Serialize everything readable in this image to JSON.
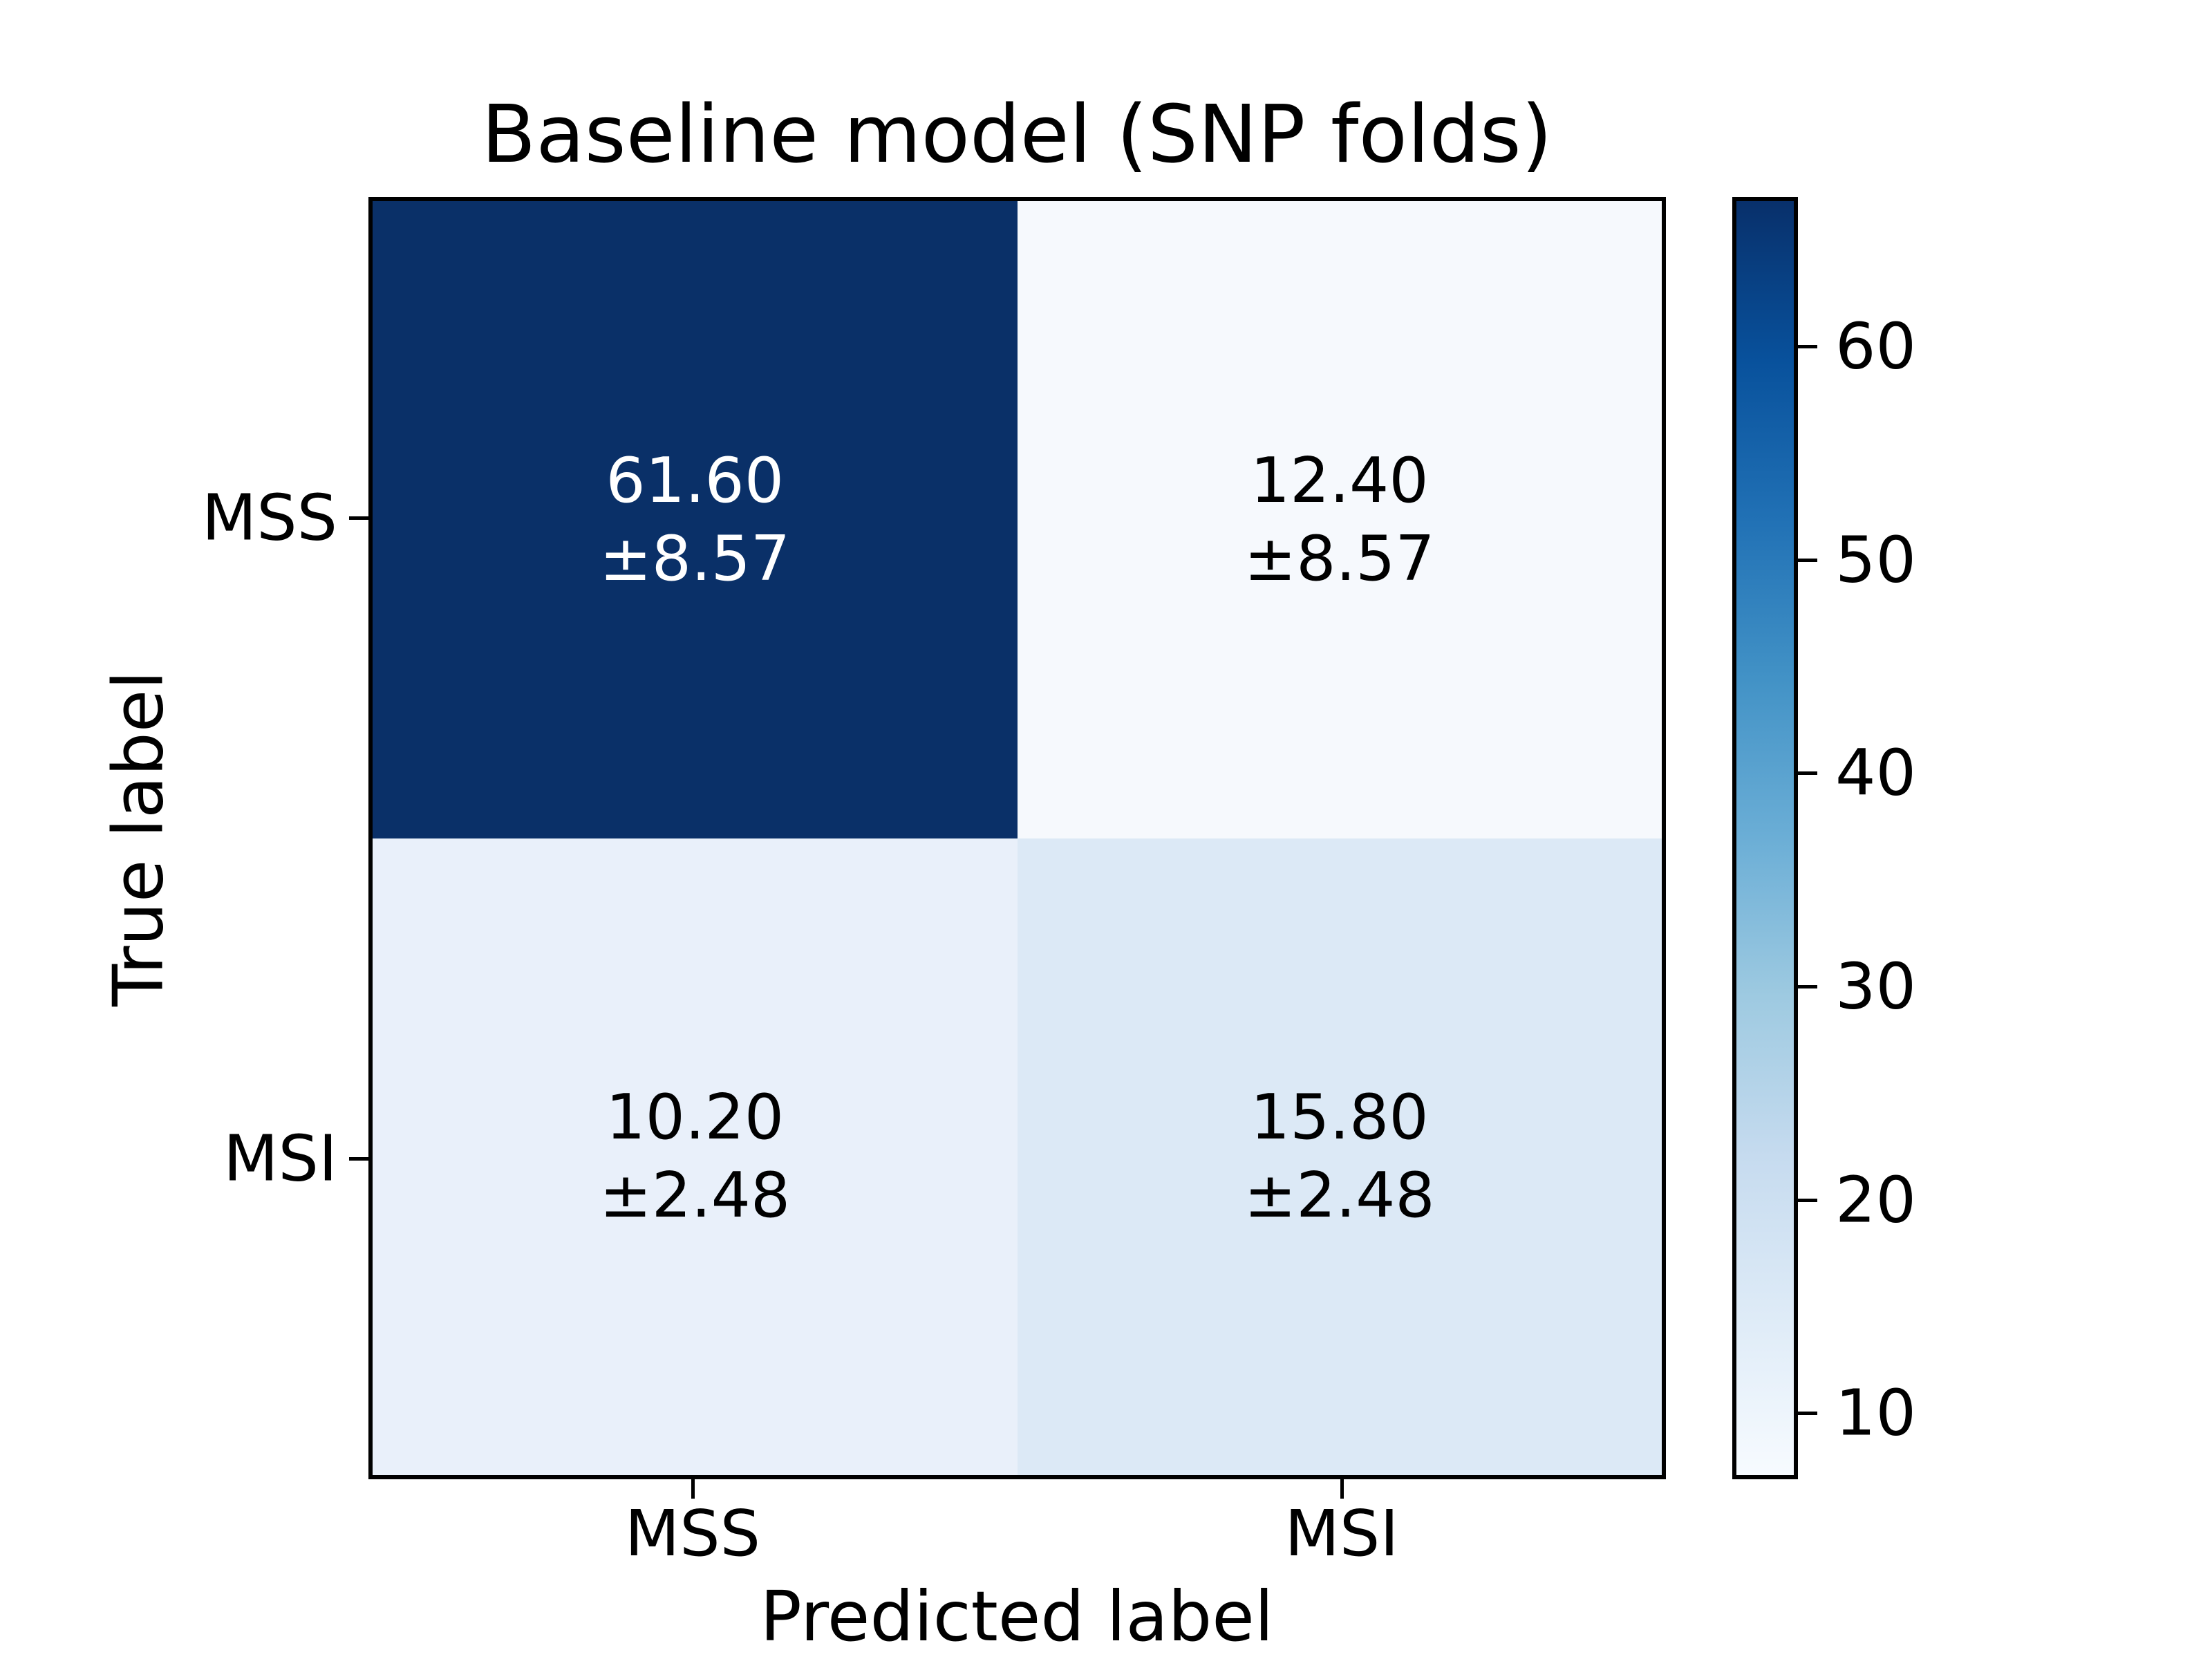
{
  "figure": {
    "title": "Baseline model (SNP folds)"
  },
  "chart_data": {
    "type": "heatmap",
    "title": "Baseline model (SNP folds)",
    "xlabel": "Predicted label",
    "ylabel": "True label",
    "x_categories": [
      "MSS",
      "MSI"
    ],
    "y_categories": [
      "MSS",
      "MSI"
    ],
    "cell_value_format": "mean ± std",
    "cells": [
      {
        "true_label": "MSS",
        "predicted_label": "MSS",
        "mean": 61.6,
        "std": 8.57,
        "value_label": "61.60",
        "std_label": "±8.57",
        "bg_color": "#0a3068",
        "text_color": "#ffffff"
      },
      {
        "true_label": "MSS",
        "predicted_label": "MSI",
        "mean": 12.4,
        "std": 8.57,
        "value_label": "12.40",
        "std_label": "±8.57",
        "bg_color": "#f6f9fd",
        "text_color": "#000000"
      },
      {
        "true_label": "MSI",
        "predicted_label": "MSS",
        "mean": 10.2,
        "std": 2.48,
        "value_label": "10.20",
        "std_label": "±2.48",
        "bg_color": "#e9f0fa",
        "text_color": "#000000"
      },
      {
        "true_label": "MSI",
        "predicted_label": "MSI",
        "mean": 15.8,
        "std": 2.48,
        "value_label": "15.80",
        "std_label": "±2.48",
        "bg_color": "#dce9f6",
        "text_color": "#000000"
      }
    ],
    "colorbar": {
      "colormap": "Blues",
      "ticks": [
        10,
        20,
        30,
        40,
        50,
        60
      ],
      "vmin": 6.9,
      "vmax": 67.0,
      "position": "right"
    },
    "grid": false,
    "legend_position": "colorbar-right"
  }
}
